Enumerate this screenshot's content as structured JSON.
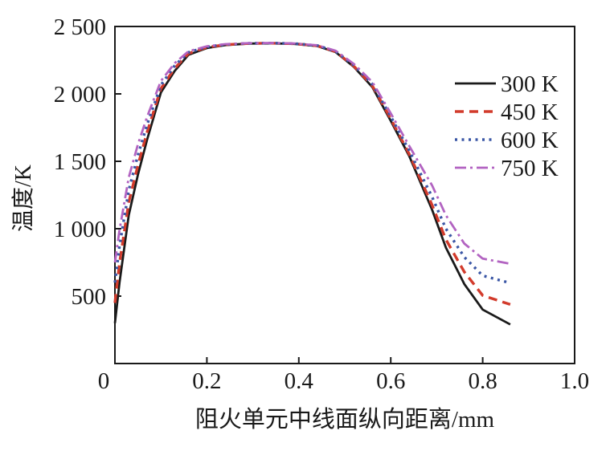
{
  "figure": {
    "background": "#ffffff",
    "text_color": "#1a1a1a"
  },
  "chart_data": {
    "type": "line",
    "title": "",
    "xlabel": "阻火单元中线面纵向距离/mm",
    "ylabel": "温度/K",
    "xlim": [
      0,
      1.0
    ],
    "ylim": [
      0,
      2500
    ],
    "grid": false,
    "legend_position": "inside upper right",
    "xticks": [
      0,
      0.2,
      0.4,
      0.6,
      0.8,
      1.0
    ],
    "xtick_labels": [
      "0",
      "0.2",
      "0.4",
      "0.6",
      "0.8",
      "1.0"
    ],
    "yticks": [
      500,
      1000,
      1500,
      2000,
      2500
    ],
    "ytick_labels": [
      "500",
      "1 000",
      "1 500",
      "2 000",
      "2 500"
    ],
    "x": [
      0,
      0.01,
      0.03,
      0.05,
      0.07,
      0.1,
      0.13,
      0.16,
      0.2,
      0.24,
      0.29,
      0.34,
      0.39,
      0.44,
      0.48,
      0.52,
      0.56,
      0.6,
      0.64,
      0.69,
      0.72,
      0.76,
      0.8,
      0.86
    ],
    "series": [
      {
        "name": "300 K",
        "color": "#1a1a1a",
        "dash": "solid",
        "width": 2.8,
        "values": [
          300,
          600,
          1100,
          1400,
          1660,
          2010,
          2170,
          2290,
          2340,
          2362,
          2373,
          2375,
          2371,
          2355,
          2310,
          2200,
          2050,
          1800,
          1540,
          1140,
          860,
          590,
          400,
          290
        ]
      },
      {
        "name": "450 K",
        "color": "#d23b2c",
        "dash": "dashed",
        "width": 3.4,
        "values": [
          450,
          745,
          1195,
          1470,
          1715,
          2040,
          2190,
          2300,
          2345,
          2365,
          2374,
          2376,
          2372,
          2357,
          2313,
          2205,
          2060,
          1815,
          1555,
          1175,
          920,
          680,
          505,
          438
        ]
      },
      {
        "name": "600 K",
        "color": "#3a56a5",
        "dash": "dotted",
        "width": 3.4,
        "values": [
          600,
          870,
          1285,
          1545,
          1770,
          2065,
          2210,
          2308,
          2349,
          2367,
          2375,
          2377,
          2373,
          2359,
          2316,
          2212,
          2072,
          1832,
          1580,
          1235,
          1000,
          790,
          652,
          597
        ]
      },
      {
        "name": "750 K",
        "color": "#b263c1",
        "dash": "dashdot",
        "width": 2.8,
        "values": [
          750,
          990,
          1380,
          1625,
          1830,
          2095,
          2228,
          2316,
          2353,
          2369,
          2376,
          2378,
          2374,
          2361,
          2320,
          2222,
          2088,
          1856,
          1615,
          1320,
          1100,
          890,
          778,
          740
        ]
      }
    ]
  }
}
